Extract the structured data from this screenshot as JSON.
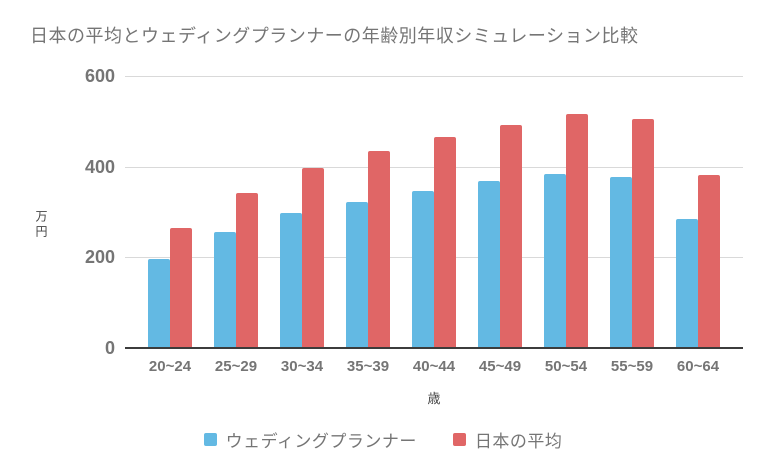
{
  "chart_data": {
    "type": "bar",
    "title": "日本の平均とウェディングプランナーの年齢別年収シミュレーション比較",
    "categories": [
      "20~24",
      "25~29",
      "30~34",
      "35~39",
      "40~44",
      "45~49",
      "50~54",
      "55~59",
      "60~64"
    ],
    "series": [
      {
        "name": "ウェディングプランナー",
        "color": "#63B9E3",
        "values": [
          196,
          256,
          297,
          323,
          347,
          368,
          384,
          378,
          285
        ]
      },
      {
        "name": "日本の平均",
        "color": "#E06666",
        "values": [
          264,
          343,
          396,
          435,
          466,
          493,
          516,
          506,
          381
        ]
      }
    ],
    "xlabel": "歳",
    "ylabel": "万円",
    "ylim": [
      0,
      600
    ],
    "yticks": [
      0,
      200,
      400,
      600
    ],
    "grid": true,
    "legend_position": "bottom"
  },
  "colors": {
    "bar_blue": "#63B9E3",
    "bar_red": "#E06666",
    "gridline": "#d9d9d9",
    "axis_line": "#3c3c3c",
    "tick_text": "#757575",
    "axis_title_text": "#434343",
    "title_text": "#757575",
    "background": "#ffffff"
  }
}
